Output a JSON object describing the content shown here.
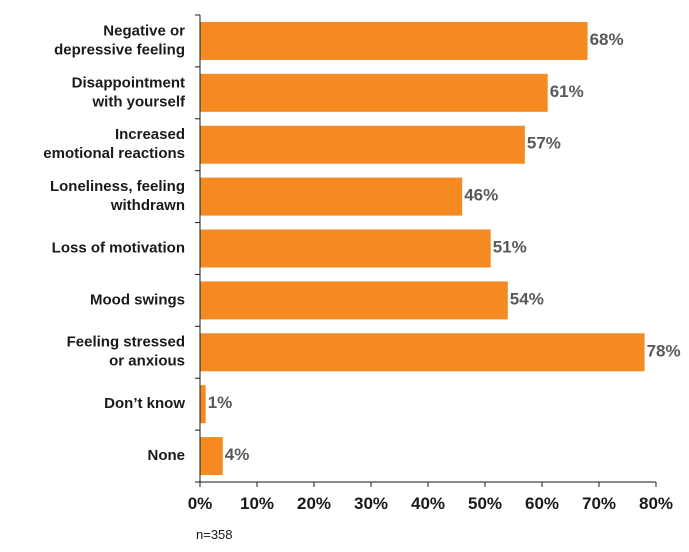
{
  "chart_data": {
    "type": "bar",
    "orientation": "horizontal",
    "categories": [
      [
        "Negative or",
        "depressive feeling"
      ],
      [
        "Disappointment",
        "with yourself"
      ],
      [
        "Increased",
        "emotional reactions"
      ],
      [
        "Loneliness, feeling",
        "withdrawn"
      ],
      [
        "Loss of motivation"
      ],
      [
        "Mood swings"
      ],
      [
        "Feeling stressed",
        "or anxious"
      ],
      [
        "Don’t know"
      ],
      [
        "None"
      ]
    ],
    "values": [
      68,
      61,
      57,
      46,
      51,
      54,
      78,
      1,
      4
    ],
    "value_labels": [
      "68%",
      "61%",
      "57%",
      "46%",
      "51%",
      "54%",
      "78%",
      "1%",
      "4%"
    ],
    "xlim": [
      0,
      80
    ],
    "x_ticks": [
      0,
      10,
      20,
      30,
      40,
      50,
      60,
      70,
      80
    ],
    "x_tick_labels": [
      "0%",
      "10%",
      "20%",
      "30%",
      "40%",
      "50%",
      "60%",
      "70%",
      "80%"
    ],
    "title": "",
    "xlabel": "",
    "ylabel": "",
    "grid": false,
    "legend": "none",
    "bar_color": "#f58a23",
    "axis_color": "#1a1a1a",
    "value_label_color": "#595959"
  },
  "note": "n=358"
}
